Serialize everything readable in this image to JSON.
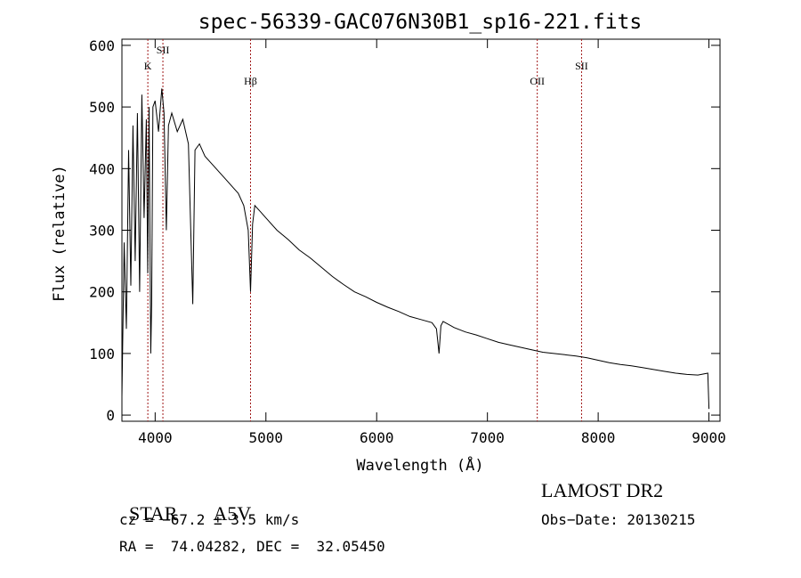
{
  "chart_data": {
    "type": "line",
    "title": "spec-56339-GAC076N30B1_sp16-221.fits",
    "xlabel": "Wavelength (Å)",
    "ylabel": "Flux (relative)",
    "xlim": [
      3700,
      9100
    ],
    "ylim": [
      -10,
      610
    ],
    "xticks": [
      4000,
      5000,
      6000,
      7000,
      8000,
      9000
    ],
    "yticks": [
      0,
      100,
      200,
      300,
      400,
      500,
      600
    ],
    "grid": false,
    "series": [
      {
        "color": "#000000",
        "x": [
          3700,
          3720,
          3740,
          3760,
          3780,
          3800,
          3820,
          3840,
          3860,
          3880,
          3900,
          3920,
          3933,
          3945,
          3960,
          3968,
          3980,
          4000,
          4030,
          4060,
          4080,
          4101,
          4120,
          4150,
          4200,
          4250,
          4300,
          4340,
          4360,
          4400,
          4450,
          4500,
          4550,
          4600,
          4650,
          4700,
          4750,
          4800,
          4840,
          4861,
          4880,
          4900,
          4950,
          5000,
          5100,
          5200,
          5300,
          5400,
          5500,
          5600,
          5700,
          5800,
          5900,
          6000,
          6100,
          6200,
          6300,
          6400,
          6500,
          6540,
          6563,
          6580,
          6600,
          6700,
          6800,
          6900,
          7000,
          7100,
          7200,
          7300,
          7400,
          7500,
          7600,
          7700,
          7800,
          7900,
          8000,
          8100,
          8200,
          8300,
          8400,
          8500,
          8600,
          8700,
          8800,
          8900,
          8990,
          9000
        ],
        "y": [
          30,
          280,
          140,
          430,
          210,
          470,
          250,
          490,
          200,
          520,
          320,
          480,
          230,
          500,
          100,
          180,
          500,
          510,
          460,
          530,
          490,
          300,
          470,
          490,
          460,
          480,
          440,
          180,
          430,
          440,
          420,
          410,
          400,
          390,
          380,
          370,
          360,
          340,
          300,
          200,
          310,
          340,
          330,
          320,
          300,
          285,
          268,
          255,
          240,
          225,
          212,
          200,
          192,
          183,
          175,
          168,
          160,
          155,
          150,
          140,
          100,
          145,
          152,
          142,
          135,
          130,
          124,
          118,
          114,
          110,
          106,
          102,
          100,
          98,
          96,
          93,
          89,
          85,
          82,
          80,
          77,
          74,
          71,
          68,
          66,
          65,
          68,
          10
        ]
      }
    ],
    "lines": [
      {
        "label": "K",
        "x": 3934
      },
      {
        "label": "SII",
        "x": 4070
      },
      {
        "label": "Hβ",
        "x": 4861
      },
      {
        "label": "OII",
        "x": 7450
      },
      {
        "label": "SII",
        "x": 7850
      }
    ],
    "line_color": "#a01818"
  },
  "info": {
    "object_type": "STAR",
    "subclass": "A5V",
    "survey": "LAMOST DR2",
    "cz": "cz = −67.2 ± 3.5 km/s",
    "obs_date": "Obs−Date: 20130215",
    "coords": "RA =  74.04282, DEC =  32.05450"
  }
}
